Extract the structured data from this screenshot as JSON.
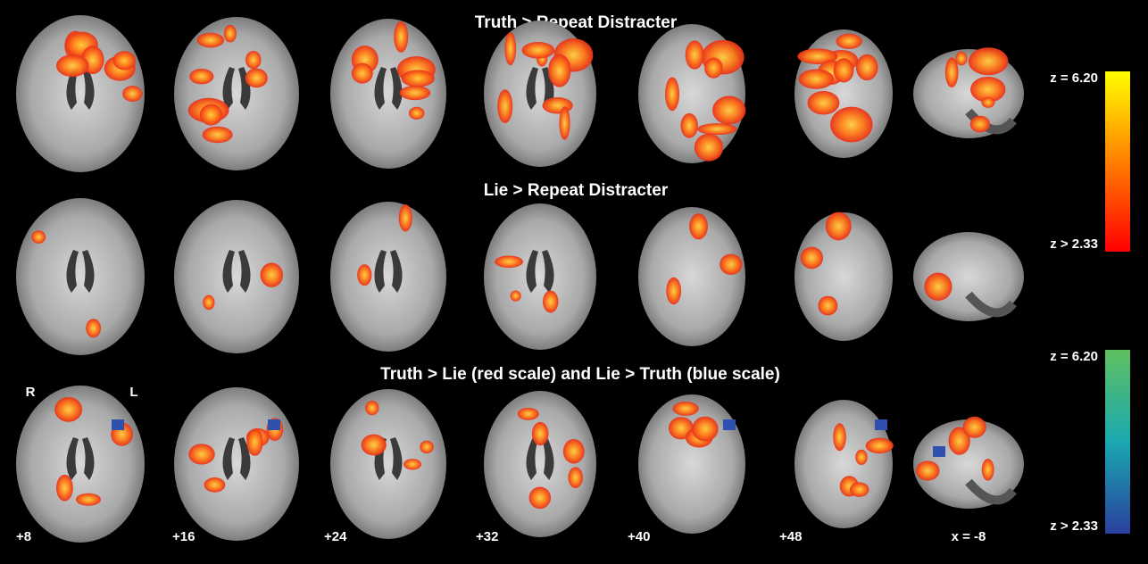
{
  "rows": [
    {
      "title": "Truth > Repeat Distracter"
    },
    {
      "title": "Lie > Repeat Distracter"
    },
    {
      "title": "Truth > Lie (red scale) and Lie > Truth (blue scale)"
    }
  ],
  "orientation": {
    "right": "R",
    "left": "L"
  },
  "slices": [
    "+8",
    "+16",
    "+24",
    "+32",
    "+40",
    "+48",
    "x = -8"
  ],
  "colorbars": [
    {
      "max_label": "z = 6.20",
      "min_label": "z > 2.33"
    },
    {
      "max_label": "z = 6.20",
      "min_label": "z > 2.33"
    }
  ]
}
